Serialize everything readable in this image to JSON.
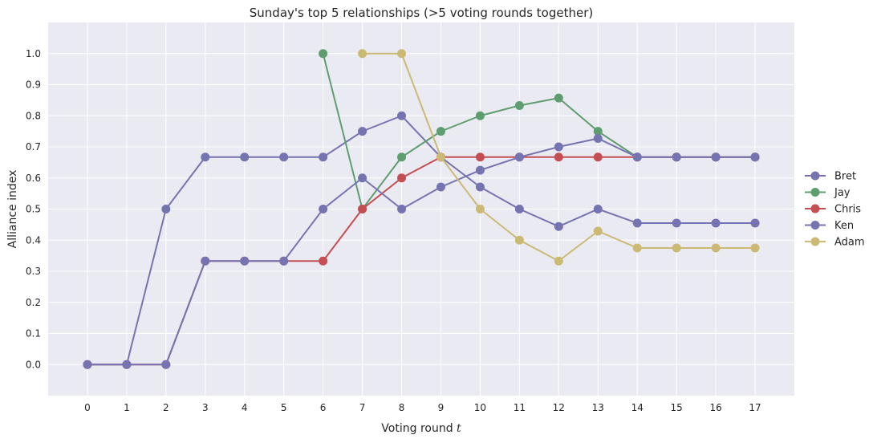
{
  "chart_data": {
    "type": "line",
    "title": "Sunday's top 5 relationships (>5 voting rounds together)",
    "xlabel": "Voting round",
    "xlabel_var": "t",
    "ylabel": "Alliance index",
    "xlim": [
      -1,
      18
    ],
    "ylim": [
      -0.1,
      1.1
    ],
    "x_ticks": [
      0,
      1,
      2,
      3,
      4,
      5,
      6,
      7,
      8,
      9,
      10,
      11,
      12,
      13,
      14,
      15,
      16,
      17
    ],
    "x_tick_labels": [
      "0",
      "1",
      "2",
      "3",
      "4",
      "5",
      "6",
      "7",
      "8",
      "9",
      "10",
      "11",
      "12",
      "13",
      "14",
      "15",
      "16",
      "17"
    ],
    "y_ticks": [
      0.0,
      0.1,
      0.2,
      0.3,
      0.4,
      0.5,
      0.6,
      0.7,
      0.8,
      0.9,
      1.0
    ],
    "y_tick_labels": [
      "0.0",
      "0.1",
      "0.2",
      "0.3",
      "0.4",
      "0.5",
      "0.6",
      "0.7",
      "0.8",
      "0.9",
      "1.0"
    ],
    "grid": true,
    "legend_position": "right-center",
    "background_color": "#eaeaf2",
    "grid_color": "#ffffff",
    "series": [
      {
        "name": "Bret",
        "color": "#7673b1",
        "x": [
          0,
          1,
          2,
          3,
          4,
          5,
          6,
          7,
          8,
          9,
          10,
          11,
          12,
          13,
          14,
          15,
          16,
          17
        ],
        "y": [
          0.0,
          0.0,
          0.5,
          0.667,
          0.667,
          0.667,
          0.667,
          0.75,
          0.8,
          0.667,
          0.571,
          0.5,
          0.444,
          0.5,
          0.455,
          0.455,
          0.455,
          0.455
        ]
      },
      {
        "name": "Jay",
        "color": "#5e9e6e",
        "x": [
          6,
          7,
          8,
          9,
          10,
          11,
          12,
          13,
          14,
          15,
          16,
          17
        ],
        "y": [
          1.0,
          0.5,
          0.667,
          0.75,
          0.8,
          0.833,
          0.857,
          0.75,
          0.667,
          0.667,
          0.667,
          0.667
        ]
      },
      {
        "name": "Chris",
        "color": "#c44e52",
        "x": [
          0,
          1,
          2,
          3,
          4,
          5,
          6,
          7,
          8,
          9,
          10,
          11,
          12,
          13,
          14,
          15,
          16,
          17
        ],
        "y": [
          0.0,
          0.0,
          0.0,
          0.333,
          0.333,
          0.333,
          0.333,
          0.5,
          0.6,
          0.667,
          0.667,
          0.667,
          0.667,
          0.667,
          0.667,
          0.667,
          0.667,
          0.667
        ]
      },
      {
        "name": "Ken",
        "color": "#7673b1",
        "x": [
          0,
          1,
          2,
          3,
          4,
          5,
          6,
          7,
          8,
          9,
          10,
          11,
          12,
          13,
          14,
          15,
          16,
          17
        ],
        "y": [
          0.0,
          0.0,
          0.0,
          0.333,
          0.333,
          0.333,
          0.5,
          0.6,
          0.5,
          0.571,
          0.625,
          0.667,
          0.7,
          0.727,
          0.667,
          0.667,
          0.667,
          0.667
        ]
      },
      {
        "name": "Adam",
        "color": "#ccb974",
        "x": [
          7,
          8,
          9,
          10,
          11,
          12,
          13,
          14,
          15,
          16,
          17
        ],
        "y": [
          1.0,
          1.0,
          0.667,
          0.5,
          0.4,
          0.333,
          0.429,
          0.375,
          0.375,
          0.375,
          0.375
        ]
      }
    ]
  }
}
